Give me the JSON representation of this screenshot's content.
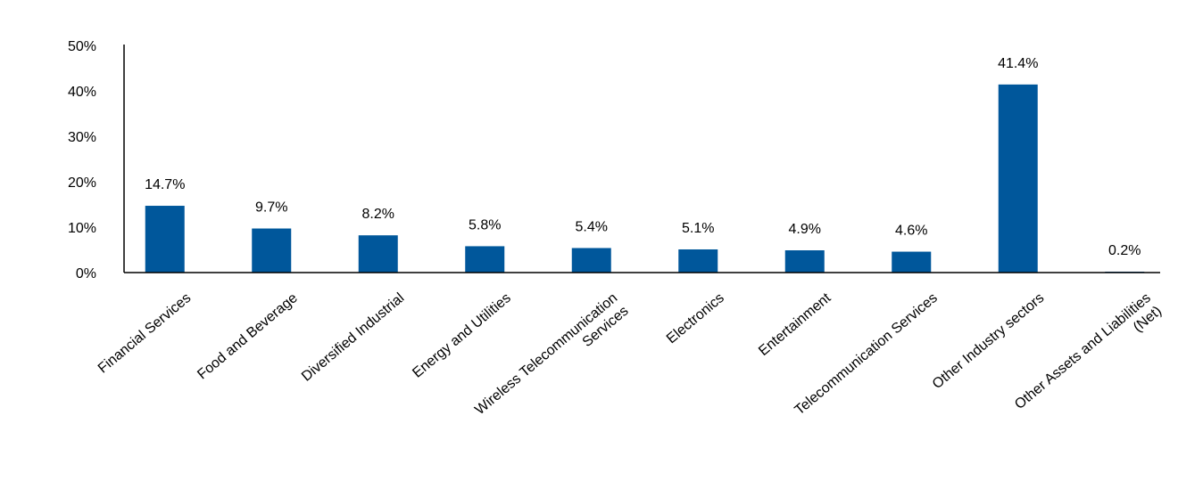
{
  "chart_data": {
    "type": "bar",
    "categories": [
      [
        "Financial Services"
      ],
      [
        "Food and Beverage"
      ],
      [
        "Diversified Industrial"
      ],
      [
        "Energy and Utilities"
      ],
      [
        "Wireless Telecommunication",
        "Services"
      ],
      [
        "Electronics"
      ],
      [
        "Entertainment"
      ],
      [
        "Telecommunication Services"
      ],
      [
        "Other Industry sectors"
      ],
      [
        "Other Assets and Liabilities",
        "(Net)"
      ]
    ],
    "values": [
      14.7,
      9.7,
      8.2,
      5.8,
      5.4,
      5.1,
      4.9,
      4.6,
      41.4,
      0.2
    ],
    "data_labels": [
      "14.7%",
      "9.7%",
      "8.2%",
      "5.8%",
      "5.4%",
      "5.1%",
      "4.9%",
      "4.6%",
      "41.4%",
      "0.2%"
    ],
    "yticks": [
      0,
      10,
      20,
      30,
      40,
      50
    ],
    "ytick_labels": [
      "0%",
      "10%",
      "20%",
      "30%",
      "40%",
      "50%"
    ],
    "ylim": [
      0,
      50
    ],
    "bar_color": "#00579b",
    "grid": false,
    "legend": "none"
  }
}
